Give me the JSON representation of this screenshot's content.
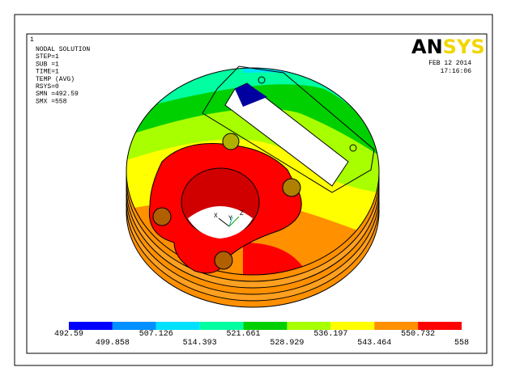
{
  "window_number": "1",
  "header": {
    "lines": [
      "NODAL SOLUTION",
      "STEP=1",
      "SUB =1",
      "TIME=1",
      "TEMP      (AVG)",
      "RSYS=0",
      "SMN =492.59",
      "SMX =558"
    ],
    "logo": [
      "AN",
      "SYS"
    ],
    "date": "FEB 12 2014",
    "time": "17:16:06"
  },
  "triad": [
    "X",
    "Y",
    "Z"
  ],
  "legend": {
    "levels": [
      "492.59",
      "499.858",
      "507.126",
      "514.393",
      "521.661",
      "528.929",
      "536.197",
      "543.464",
      "550.732",
      "558"
    ],
    "colors": [
      "#0000ff",
      "#0090ff",
      "#00e0ff",
      "#00ffa0",
      "#00d000",
      "#a8ff00",
      "#ffff00",
      "#ff9000",
      "#ff0000"
    ]
  }
}
